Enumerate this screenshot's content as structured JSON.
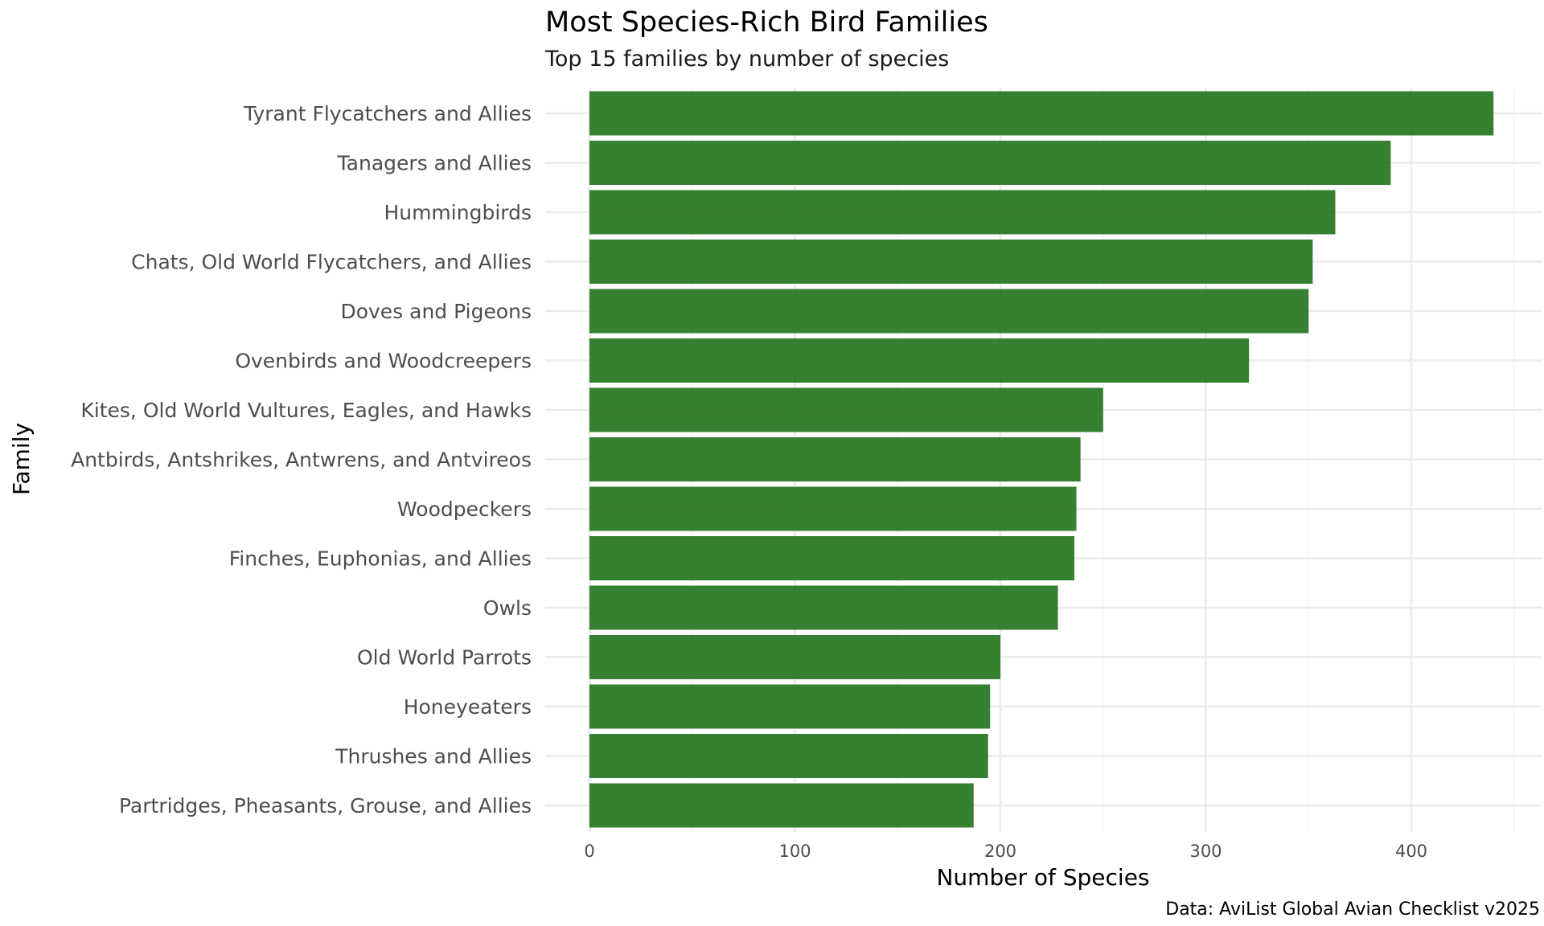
{
  "chart_data": {
    "type": "bar",
    "orientation": "horizontal",
    "title": "Most Species-Rich Bird Families",
    "subtitle": "Top 15 families by number of species",
    "xlabel": "Number of Species",
    "ylabel": "Family",
    "caption": "Data: AviList Global Avian Checklist v2025",
    "categories": [
      "Tyrant Flycatchers and Allies",
      "Tanagers and Allies",
      "Hummingbirds",
      "Chats, Old World Flycatchers, and Allies",
      "Doves and Pigeons",
      "Ovenbirds and Woodcreepers",
      "Kites, Old World Vultures, Eagles, and Hawks",
      "Antbirds, Antshrikes, Antwrens, and Antvireos",
      "Woodpeckers",
      "Finches, Euphonias, and Allies",
      "Owls",
      "Old World Parrots",
      "Honeyeaters",
      "Thrushes and Allies",
      "Partridges, Pheasants, Grouse, and Allies"
    ],
    "values": [
      440,
      390,
      363,
      352,
      350,
      321,
      250,
      239,
      237,
      236,
      228,
      200,
      195,
      194,
      187
    ],
    "xlim": [
      0,
      450
    ],
    "xticks": [
      0,
      100,
      200,
      300,
      400
    ],
    "grid": true,
    "legend": "none",
    "bar_color": "#1a7015"
  }
}
